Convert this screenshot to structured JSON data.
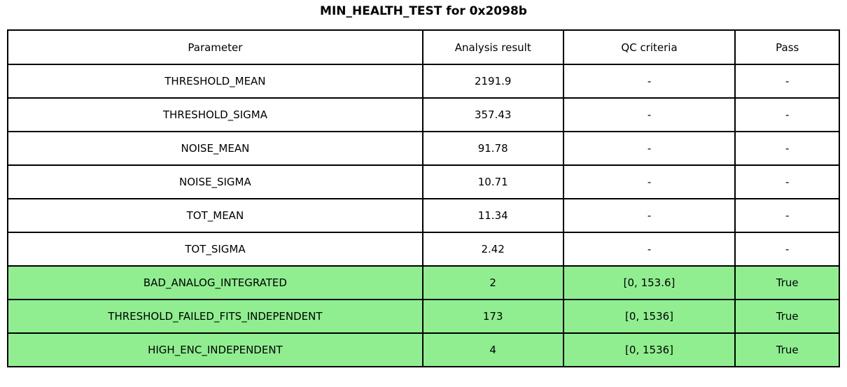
{
  "title": "MIN_HEALTH_TEST for 0x2098b",
  "table": {
    "headers": [
      "Parameter",
      "Analysis result",
      "QC criteria",
      "Pass"
    ],
    "rows": [
      {
        "parameter": "THRESHOLD_MEAN",
        "analysis_result": "2191.9",
        "qc_criteria": "-",
        "pass": "-",
        "highlight": false
      },
      {
        "parameter": "THRESHOLD_SIGMA",
        "analysis_result": "357.43",
        "qc_criteria": "-",
        "pass": "-",
        "highlight": false
      },
      {
        "parameter": "NOISE_MEAN",
        "analysis_result": "91.78",
        "qc_criteria": "-",
        "pass": "-",
        "highlight": false
      },
      {
        "parameter": "NOISE_SIGMA",
        "analysis_result": "10.71",
        "qc_criteria": "-",
        "pass": "-",
        "highlight": false
      },
      {
        "parameter": "TOT_MEAN",
        "analysis_result": "11.34",
        "qc_criteria": "-",
        "pass": "-",
        "highlight": false
      },
      {
        "parameter": "TOT_SIGMA",
        "analysis_result": "2.42",
        "qc_criteria": "-",
        "pass": "-",
        "highlight": false
      },
      {
        "parameter": "BAD_ANALOG_INTEGRATED",
        "analysis_result": "2",
        "qc_criteria": "[0, 153.6]",
        "pass": "True",
        "highlight": true
      },
      {
        "parameter": "THRESHOLD_FAILED_FITS_INDEPENDENT",
        "analysis_result": "173",
        "qc_criteria": "[0, 1536]",
        "pass": "True",
        "highlight": true
      },
      {
        "parameter": "HIGH_ENC_INDEPENDENT",
        "analysis_result": "4",
        "qc_criteria": "[0, 1536]",
        "pass": "True",
        "highlight": true
      }
    ]
  },
  "colors": {
    "pass_highlight": "#90EE90",
    "border": "#000000",
    "background": "#FFFFFF",
    "text": "#000000"
  },
  "chart_data": {
    "type": "table",
    "title": "MIN_HEALTH_TEST for 0x2098b",
    "columns": [
      "Parameter",
      "Analysis result",
      "QC criteria",
      "Pass"
    ],
    "rows": [
      [
        "THRESHOLD_MEAN",
        "2191.9",
        "-",
        "-"
      ],
      [
        "THRESHOLD_SIGMA",
        "357.43",
        "-",
        "-"
      ],
      [
        "NOISE_MEAN",
        "91.78",
        "-",
        "-"
      ],
      [
        "NOISE_SIGMA",
        "10.71",
        "-",
        "-"
      ],
      [
        "TOT_MEAN",
        "11.34",
        "-",
        "-"
      ],
      [
        "TOT_SIGMA",
        "2.42",
        "-",
        "-"
      ],
      [
        "BAD_ANALOG_INTEGRATED",
        "2",
        "[0, 153.6]",
        "True"
      ],
      [
        "THRESHOLD_FAILED_FITS_INDEPENDENT",
        "173",
        "[0, 1536]",
        "True"
      ],
      [
        "HIGH_ENC_INDEPENDENT",
        "4",
        "[0, 1536]",
        "True"
      ]
    ],
    "highlighted_rows": [
      6,
      7,
      8
    ],
    "highlight_color": "#90EE90",
    "legend_position": "none",
    "grid": "full-cell-borders"
  }
}
